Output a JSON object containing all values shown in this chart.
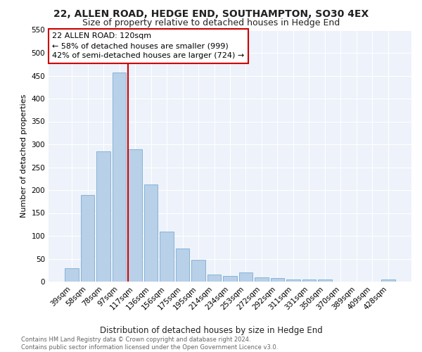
{
  "title": "22, ALLEN ROAD, HEDGE END, SOUTHAMPTON, SO30 4EX",
  "subtitle": "Size of property relative to detached houses in Hedge End",
  "xlabel": "Distribution of detached houses by size in Hedge End",
  "ylabel": "Number of detached properties",
  "bar_color": "#b8d0e8",
  "bar_edge_color": "#7aadd4",
  "background_color": "#eef2fa",
  "grid_color": "#ffffff",
  "categories": [
    "39sqm",
    "58sqm",
    "78sqm",
    "97sqm",
    "117sqm",
    "136sqm",
    "156sqm",
    "175sqm",
    "195sqm",
    "214sqm",
    "234sqm",
    "253sqm",
    "272sqm",
    "292sqm",
    "311sqm",
    "331sqm",
    "350sqm",
    "370sqm",
    "389sqm",
    "409sqm",
    "428sqm"
  ],
  "values": [
    30,
    190,
    285,
    457,
    290,
    213,
    110,
    73,
    47,
    15,
    13,
    20,
    10,
    8,
    5,
    5,
    4,
    0,
    0,
    0,
    5
  ],
  "vline_color": "#cc0000",
  "vline_index": 4,
  "annotation_text": "22 ALLEN ROAD: 120sqm\n← 58% of detached houses are smaller (999)\n42% of semi-detached houses are larger (724) →",
  "annotation_box_color": "#ffffff",
  "annotation_box_edge_color": "#cc0000",
  "ylim": [
    0,
    550
  ],
  "yticks": [
    0,
    50,
    100,
    150,
    200,
    250,
    300,
    350,
    400,
    450,
    500,
    550
  ],
  "footer": "Contains HM Land Registry data © Crown copyright and database right 2024.\nContains public sector information licensed under the Open Government Licence v3.0.",
  "title_fontsize": 10,
  "subtitle_fontsize": 9,
  "xlabel_fontsize": 8.5,
  "ylabel_fontsize": 8,
  "tick_fontsize": 7.5,
  "annotation_fontsize": 8,
  "footer_fontsize": 6
}
